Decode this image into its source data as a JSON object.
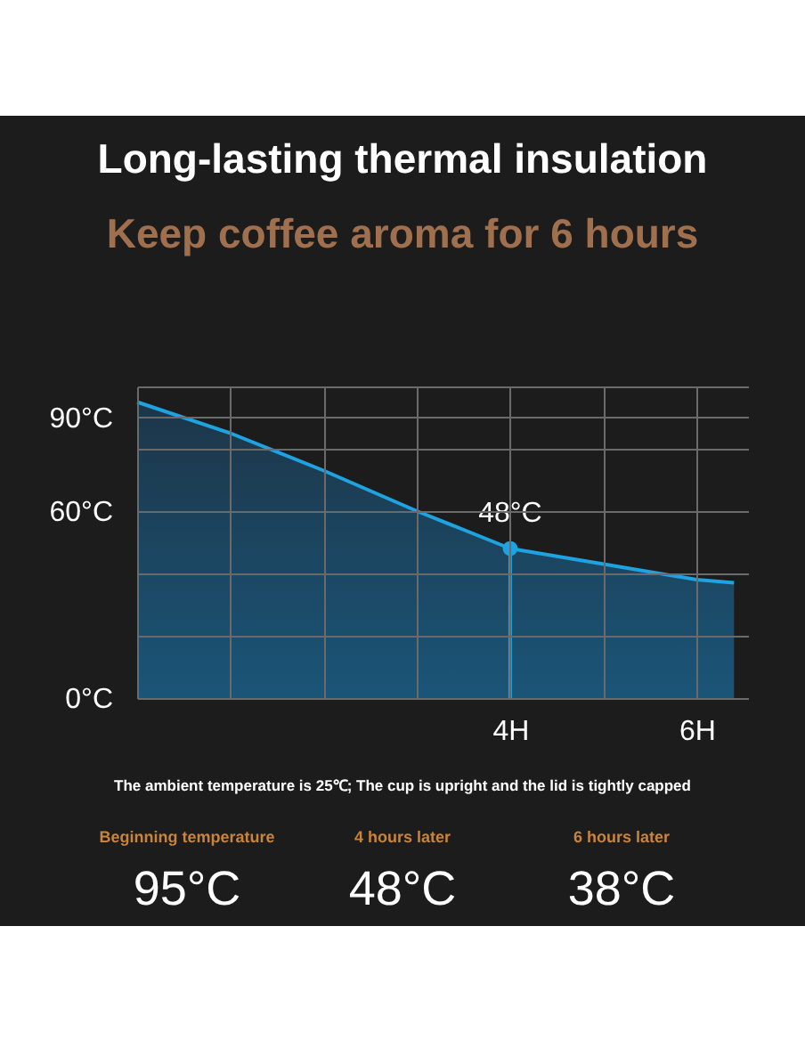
{
  "chart_data": {
    "type": "area",
    "title": "Long-lasting thermal insulation",
    "subtitle": "Keep coffee aroma for 6 hours",
    "x": [
      0,
      1,
      2,
      3,
      4,
      5,
      6,
      6.4
    ],
    "series": [
      {
        "color": "#1fa3e0",
        "values": [
          95,
          85,
          73,
          60,
          48,
          43,
          38,
          37
        ]
      }
    ],
    "xlim": [
      0,
      6.55
    ],
    "ylim": [
      0,
      100
    ],
    "xticks": [
      {
        "value": 0,
        "label": null
      },
      {
        "value": 1,
        "label": null
      },
      {
        "value": 2,
        "label": null
      },
      {
        "value": 3,
        "label": null
      },
      {
        "value": 4,
        "label": "4H"
      },
      {
        "value": 5,
        "label": null
      },
      {
        "value": 6,
        "label": "6H"
      }
    ],
    "yticks": [
      {
        "value": 0,
        "label": "0°C"
      },
      {
        "value": 20,
        "label": null
      },
      {
        "value": 40,
        "label": null
      },
      {
        "value": 60,
        "label": "60°C"
      },
      {
        "value": 80,
        "label": null
      },
      {
        "value": 90,
        "label": "90°C"
      },
      {
        "value": 100,
        "label": null
      }
    ],
    "grid": true,
    "annotations": [
      {
        "text": "48°C",
        "x": 4,
        "y": 48
      },
      "The ambient temperature is 25℃; The cup is upright and the lid is tightly capped",
      "Beginning temperature",
      "95°C",
      "4 hours later",
      "48°C",
      "6 hours later",
      "38°C"
    ]
  }
}
